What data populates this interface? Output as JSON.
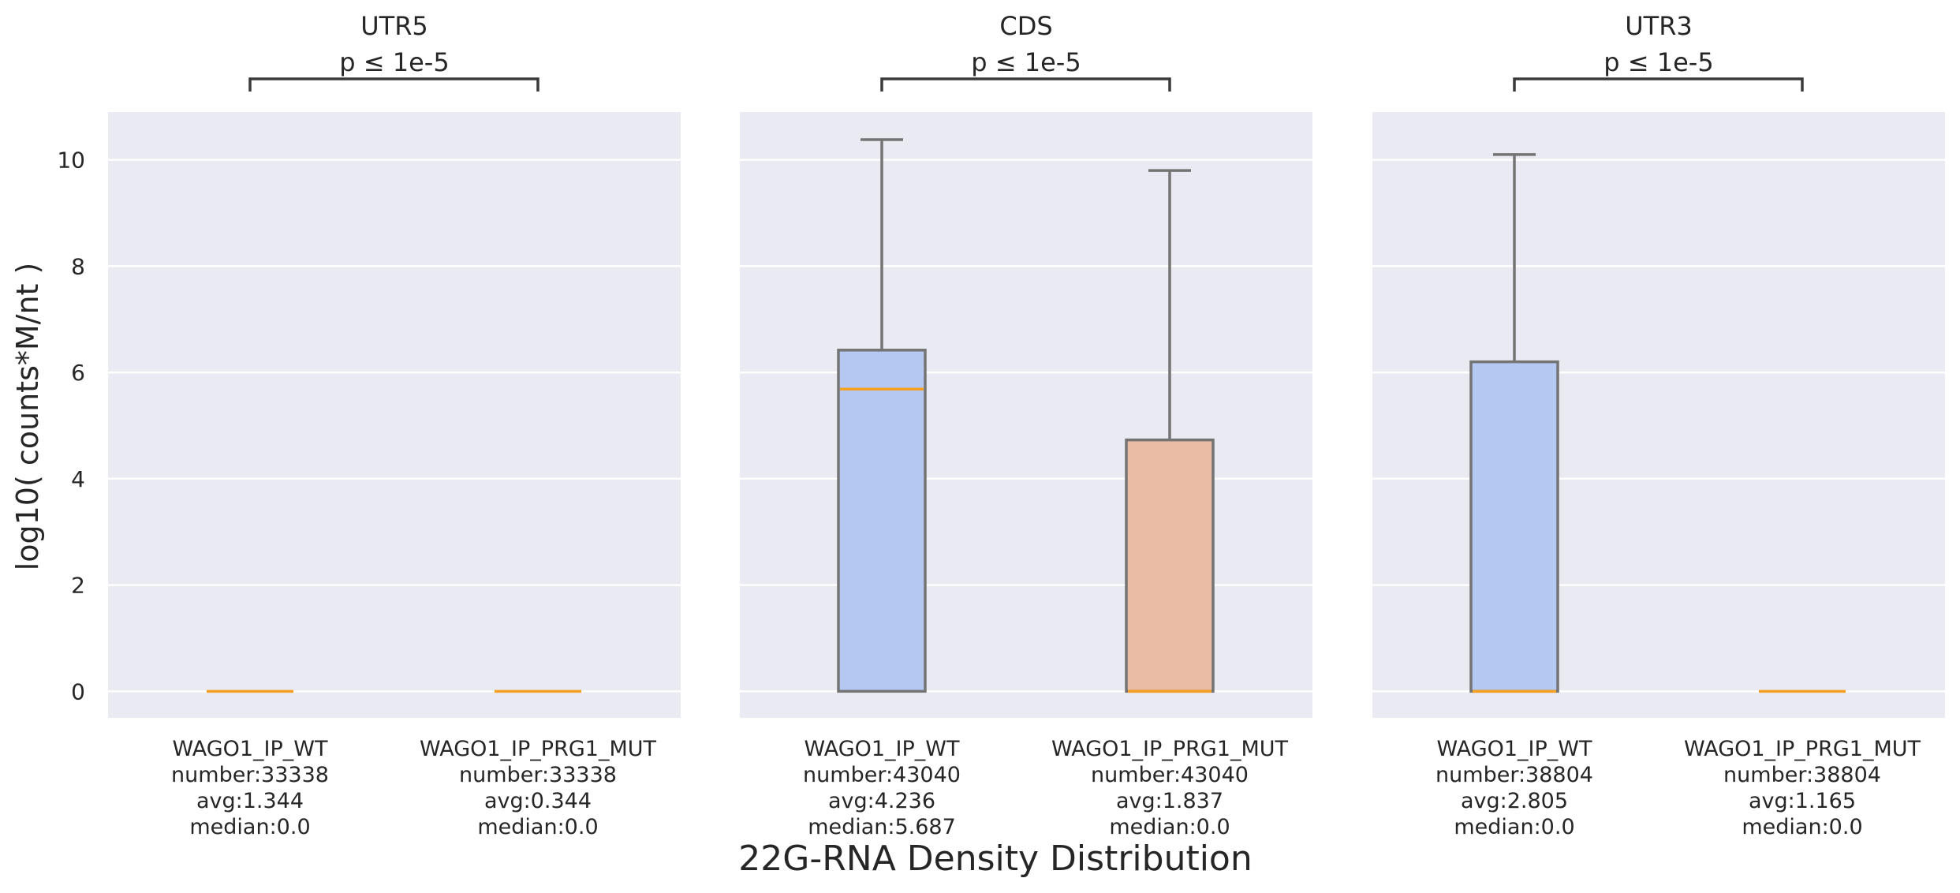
{
  "figure": {
    "xlabel": "22G-RNA Density Distribution",
    "ylabel": "log10( counts*M/nt )"
  },
  "colors": {
    "panel_bg": "#eaeaf2",
    "grid": "#ffffff",
    "wt_box": "#b5c8f2",
    "mut_box": "#eabba5",
    "median": "#f5a020",
    "box_edge": "#747474",
    "bracket": "#3a3a3a"
  },
  "chart_data": {
    "type": "box",
    "y_scale": "linear",
    "ylim": [
      -0.5,
      10.9
    ],
    "yticks": [
      0,
      2,
      4,
      6,
      8,
      10
    ],
    "grid": true,
    "shared_y": true,
    "panels": [
      {
        "title": "UTR5",
        "pvalue": "p ≤ 1e-5",
        "groups": [
          {
            "label": "WAGO1_IP_WT",
            "stats": [
              "number:33338",
              "avg:1.344",
              "median:0.0"
            ],
            "box": "wt",
            "q1": 0,
            "median": 0,
            "q3": 0,
            "whisker_low": 0,
            "whisker_high": 0
          },
          {
            "label": "WAGO1_IP_PRG1_MUT",
            "stats": [
              "number:33338",
              "avg:0.344",
              "median:0.0"
            ],
            "box": "mut",
            "q1": 0,
            "median": 0,
            "q3": 0,
            "whisker_low": 0,
            "whisker_high": 0
          }
        ]
      },
      {
        "title": "CDS",
        "pvalue": "p ≤ 1e-5",
        "groups": [
          {
            "label": "WAGO1_IP_WT",
            "stats": [
              "number:43040",
              "avg:4.236",
              "median:5.687"
            ],
            "box": "wt",
            "q1": 0,
            "median": 5.687,
            "q3": 6.42,
            "whisker_low": 0,
            "whisker_high": 10.38
          },
          {
            "label": "WAGO1_IP_PRG1_MUT",
            "stats": [
              "number:43040",
              "avg:1.837",
              "median:0.0"
            ],
            "box": "mut",
            "q1": 0,
            "median": 0,
            "q3": 4.73,
            "whisker_low": 0,
            "whisker_high": 9.8
          }
        ]
      },
      {
        "title": "UTR3",
        "pvalue": "p ≤ 1e-5",
        "groups": [
          {
            "label": "WAGO1_IP_WT",
            "stats": [
              "number:38804",
              "avg:2.805",
              "median:0.0"
            ],
            "box": "wt",
            "q1": 0,
            "median": 0,
            "q3": 6.2,
            "whisker_low": 0,
            "whisker_high": 10.1
          },
          {
            "label": "WAGO1_IP_PRG1_MUT",
            "stats": [
              "number:38804",
              "avg:1.165",
              "median:0.0"
            ],
            "box": "mut",
            "q1": 0,
            "median": 0,
            "q3": 0,
            "whisker_low": 0,
            "whisker_high": 0
          }
        ]
      }
    ]
  }
}
